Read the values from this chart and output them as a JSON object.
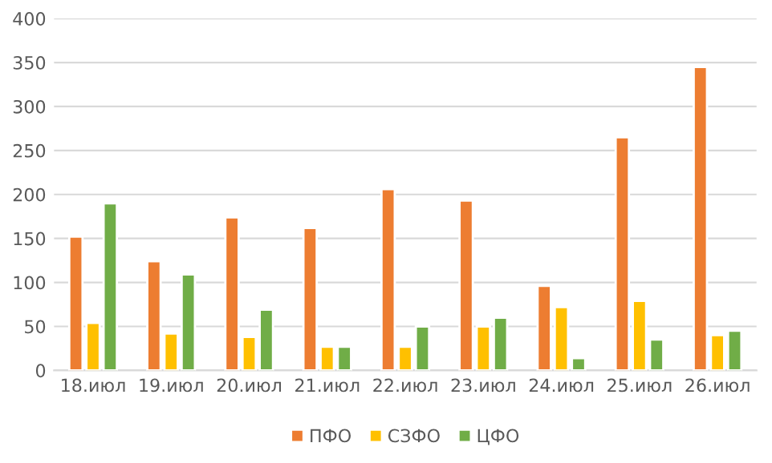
{
  "chart_data": {
    "type": "bar",
    "categories": [
      "18.июл",
      "19.июл",
      "20.июл",
      "21.июл",
      "22.июл",
      "23.июл",
      "24.июл",
      "25.июл",
      "26.июл"
    ],
    "series": [
      {
        "name": "ПФО",
        "color": "#ed7d31",
        "values": [
          152,
          124,
          174,
          162,
          206,
          193,
          96,
          265,
          345
        ]
      },
      {
        "name": "СЗФО",
        "color": "#ffc000",
        "values": [
          54,
          42,
          38,
          27,
          27,
          50,
          72,
          79,
          40
        ]
      },
      {
        "name": "ЦФО",
        "color": "#70ad47",
        "values": [
          190,
          109,
          69,
          27,
          50,
          60,
          14,
          35,
          45
        ]
      }
    ],
    "ylim": [
      0,
      400
    ],
    "yticks": [
      0,
      50,
      100,
      150,
      200,
      250,
      300,
      350,
      400
    ],
    "grid": "y",
    "legend": "bottom"
  }
}
